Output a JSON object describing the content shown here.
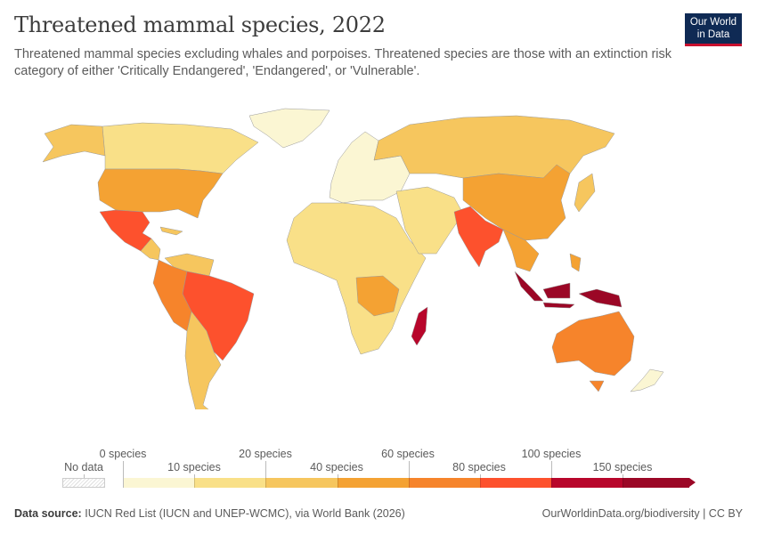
{
  "title": "Threatened mammal species, 2022",
  "subtitle": "Threatened mammal species excluding whales and porpoises. Threatened species are those with an extinction risk category of either 'Critically Endangered', 'Endangered', or 'Vulnerable'.",
  "logo": {
    "line1": "Our World",
    "line2": "in Data"
  },
  "legend": {
    "no_data": "No data",
    "top_labels": [
      "0 species",
      "20 species",
      "60 species",
      "100 species"
    ],
    "bottom_labels": [
      "10 species",
      "40 species",
      "80 species",
      "150 species"
    ],
    "bins": [
      {
        "range": "0-10",
        "color": "#fbf6d3"
      },
      {
        "range": "10-20",
        "color": "#f9e088"
      },
      {
        "range": "20-40",
        "color": "#f6c65e"
      },
      {
        "range": "40-60",
        "color": "#f4a233"
      },
      {
        "range": "60-80",
        "color": "#f6842b"
      },
      {
        "range": "80-100",
        "color": "#fd512d"
      },
      {
        "range": "100-150",
        "color": "#b8062b"
      },
      {
        "range": "150+",
        "color": "#9b0726"
      }
    ]
  },
  "regions": [
    {
      "name": "Greenland",
      "bin": 0
    },
    {
      "name": "Alaska",
      "bin": 2
    },
    {
      "name": "Canada",
      "bin": 1
    },
    {
      "name": "United States",
      "bin": 3
    },
    {
      "name": "Mexico",
      "bin": 5
    },
    {
      "name": "Central America",
      "bin": 2
    },
    {
      "name": "Venezuela",
      "bin": 2
    },
    {
      "name": "Colombia-Peru",
      "bin": 4
    },
    {
      "name": "Brazil",
      "bin": 5
    },
    {
      "name": "Southern Cone",
      "bin": 2
    },
    {
      "name": "Europe",
      "bin": 0
    },
    {
      "name": "Russia",
      "bin": 2
    },
    {
      "name": "Africa",
      "bin": 1
    },
    {
      "name": "Central Africa",
      "bin": 3
    },
    {
      "name": "Madagascar",
      "bin": 6
    },
    {
      "name": "Middle East",
      "bin": 1
    },
    {
      "name": "China",
      "bin": 3
    },
    {
      "name": "India",
      "bin": 5
    },
    {
      "name": "Southeast Asia",
      "bin": 3
    },
    {
      "name": "Indonesia",
      "bin": 7
    },
    {
      "name": "Australia",
      "bin": 4
    },
    {
      "name": "Japan",
      "bin": 2
    },
    {
      "name": "New Zealand",
      "bin": 0
    }
  ],
  "footer": {
    "source_label": "Data source:",
    "source_text": "IUCN Red List (IUCN and UNEP-WCMC), via World Bank (2026)",
    "url": "OurWorldinData.org/biodiversity | CC BY"
  }
}
